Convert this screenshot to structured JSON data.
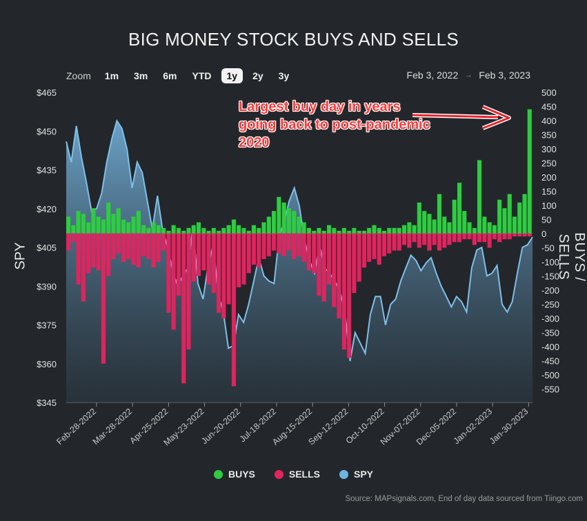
{
  "title": "BIG MONEY STOCK BUYS AND SELLS",
  "zoom": {
    "label": "Zoom",
    "buttons": [
      "1m",
      "3m",
      "6m",
      "YTD",
      "1y",
      "2y",
      "3y"
    ],
    "active": "1y"
  },
  "range": {
    "from": "Feb 3, 2022",
    "arrow": "→",
    "to": "Feb 3, 2023"
  },
  "annotation": [
    "Largest buy day in years",
    "going back to post-pandemic",
    "2020"
  ],
  "legend": {
    "buys": "BUYS",
    "sells": "SELLS",
    "spy": "SPY"
  },
  "source": "Source: MAPsignals.com, End of day data sourced from Tiingo.com",
  "colors": {
    "background": "#23272b",
    "buys": "#2ecc40",
    "sells": "#e0245e",
    "spy": "#6fb3e0",
    "annotation": "#ff3b3b"
  },
  "chart_data": {
    "type": "bar+area",
    "title": "BIG MONEY STOCK BUYS AND SELLS",
    "x_range": [
      "2022-02-03",
      "2023-02-03"
    ],
    "x_tick_labels": [
      "Feb-28-2022",
      "Mar-28-2022",
      "Apr-25-2022",
      "May-23-2022",
      "Jun-20-2022",
      "Jul-18-2022",
      "Aug-15-2022",
      "Sep-12-2022",
      "Oct-10-2022",
      "Nov-07-2022",
      "Dec-05-2022",
      "Jan-02-2023",
      "Jan-30-2023"
    ],
    "y_left": {
      "label": "SPY",
      "ylim": [
        345,
        465
      ],
      "tick_labels": [
        "$345",
        "$360",
        "$375",
        "$390",
        "$405",
        "$420",
        "$435",
        "$450",
        "$465"
      ],
      "ticks": [
        345,
        360,
        375,
        390,
        405,
        420,
        435,
        450,
        465
      ]
    },
    "y_right": {
      "label": "BUYS / SELLS",
      "ylim": [
        -600,
        500
      ],
      "ticks": [
        500,
        450,
        400,
        350,
        300,
        250,
        200,
        150,
        100,
        50,
        0,
        -50,
        -100,
        -150,
        -200,
        -250,
        -300,
        -350,
        -400,
        -450,
        -500,
        -550
      ]
    },
    "series": [
      {
        "name": "SPY",
        "type": "area",
        "axis": "left",
        "values": [
          446,
          438,
          452,
          440,
          430,
          419,
          420,
          426,
          438,
          447,
          454,
          451,
          443,
          428,
          438,
          434,
          423,
          412,
          425,
          412,
          405,
          396,
          390,
          394,
          397,
          413,
          391,
          385,
          398,
          406,
          387,
          380,
          366,
          367,
          379,
          376,
          383,
          392,
          401,
          394,
          392,
          391,
          409,
          415,
          423,
          428,
          421,
          408,
          400,
          395,
          406,
          397,
          395,
          392,
          388,
          380,
          361,
          372,
          368,
          364,
          379,
          386,
          386,
          375,
          383,
          385,
          392,
          397,
          402,
          400,
          396,
          399,
          401,
          395,
          390,
          386,
          382,
          386,
          384,
          380,
          397,
          404,
          405,
          394,
          395,
          398,
          383,
          380,
          384,
          395,
          405,
          406,
          409
        ]
      },
      {
        "name": "BUYS",
        "type": "bar",
        "axis": "right",
        "values": [
          60,
          30,
          80,
          70,
          40,
          90,
          60,
          50,
          110,
          70,
          90,
          50,
          40,
          60,
          80,
          30,
          20,
          40,
          30,
          20,
          10,
          30,
          20,
          10,
          20,
          30,
          40,
          20,
          10,
          20,
          10,
          20,
          30,
          50,
          30,
          20,
          10,
          30,
          20,
          40,
          60,
          80,
          130,
          110,
          90,
          80,
          60,
          40,
          20,
          10,
          20,
          10,
          30,
          20,
          10,
          20,
          10,
          20,
          10,
          10,
          20,
          30,
          20,
          10,
          20,
          20,
          20,
          30,
          40,
          30,
          110,
          80,
          70,
          50,
          140,
          60,
          40,
          120,
          180,
          80,
          40,
          20,
          260,
          60,
          40,
          30,
          120,
          90,
          140,
          60,
          110,
          140,
          440
        ]
      },
      {
        "name": "SELLS",
        "type": "bar",
        "axis": "right",
        "values": [
          -60,
          -30,
          -180,
          -240,
          -140,
          -120,
          -130,
          -460,
          -150,
          -90,
          -70,
          -100,
          -90,
          -110,
          -120,
          -80,
          -90,
          -120,
          -100,
          -60,
          -280,
          -340,
          -220,
          -530,
          -410,
          -170,
          -150,
          -130,
          -180,
          -210,
          -280,
          -300,
          -250,
          -540,
          -190,
          -180,
          -140,
          -110,
          -120,
          -90,
          -80,
          -60,
          -70,
          -80,
          -60,
          -90,
          -80,
          -100,
          -130,
          -140,
          -220,
          -240,
          -180,
          -260,
          -300,
          -410,
          -440,
          -210,
          -170,
          -120,
          -100,
          -90,
          -110,
          -80,
          -70,
          -60,
          -60,
          -40,
          -50,
          -30,
          -50,
          -40,
          -60,
          -40,
          -60,
          -50,
          -40,
          -30,
          -30,
          -20,
          -20,
          -40,
          -30,
          -30,
          -50,
          -20,
          -30,
          -20,
          -20,
          -10,
          -10,
          -10,
          -10
        ]
      }
    ],
    "legend": [
      "BUYS",
      "SELLS",
      "SPY"
    ],
    "legend_position": "bottom"
  }
}
